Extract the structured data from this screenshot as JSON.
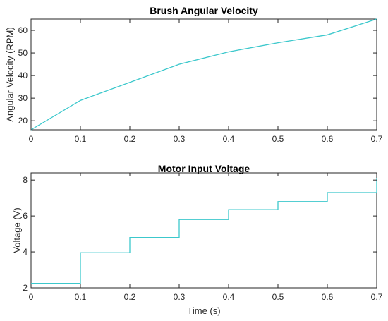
{
  "chart_data": [
    {
      "type": "line",
      "title": "Brush Angular Velocity",
      "xlabel": "",
      "ylabel": "Angular Velocity (RPM)",
      "xlim": [
        0,
        0.7
      ],
      "ylim": [
        16,
        65
      ],
      "xticks": [
        0,
        0.1,
        0.2,
        0.3,
        0.4,
        0.5,
        0.6,
        0.7
      ],
      "xtick_labels": [
        "0",
        "0.1",
        "0.2",
        "0.3",
        "0.4",
        "0.5",
        "0.6",
        "0.7"
      ],
      "yticks": [
        20,
        30,
        40,
        50,
        60
      ],
      "ytick_labels": [
        "20",
        "30",
        "40",
        "50",
        "60"
      ],
      "grid": false,
      "series": [
        {
          "color": "#3cc8cc",
          "x": [
            0,
            0.1,
            0.2,
            0.3,
            0.4,
            0.5,
            0.6,
            0.7
          ],
          "y": [
            16,
            29,
            37,
            45,
            50.5,
            54.5,
            58,
            65
          ]
        }
      ]
    },
    {
      "type": "line",
      "step": true,
      "title": "Motor Input Voltage",
      "xlabel": "Time (s)",
      "ylabel": "Voltage (V)",
      "xlim": [
        0,
        0.7
      ],
      "ylim": [
        2,
        8.4
      ],
      "xticks": [
        0,
        0.1,
        0.2,
        0.3,
        0.4,
        0.5,
        0.6,
        0.7
      ],
      "xtick_labels": [
        "0",
        "0.1",
        "0.2",
        "0.3",
        "0.4",
        "0.5",
        "0.6",
        "0.7"
      ],
      "yticks": [
        2,
        4,
        6,
        8
      ],
      "ytick_labels": [
        "2",
        "4",
        "6",
        "8"
      ],
      "grid": false,
      "series": [
        {
          "color": "#3cc8cc",
          "x": [
            0,
            0.1,
            0.2,
            0.3,
            0.4,
            0.5,
            0.6,
            0.7
          ],
          "y": [
            2.25,
            3.95,
            4.8,
            5.8,
            6.35,
            6.8,
            7.3,
            8.1
          ]
        }
      ]
    }
  ]
}
